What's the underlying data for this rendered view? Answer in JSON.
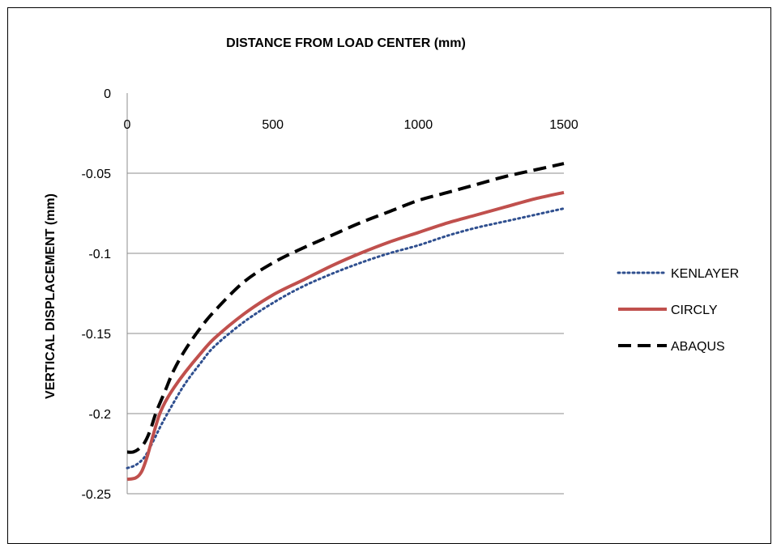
{
  "chart_data": {
    "type": "line",
    "xlabel": "DISTANCE FROM  LOAD CENTER (mm)",
    "ylabel": "VERTICAL  DISPLACEMENT  (mm)",
    "xlim": [
      0,
      1500
    ],
    "ylim": [
      -0.25,
      0
    ],
    "x_ticks": [
      "0",
      "500",
      "1000",
      "1500"
    ],
    "y_ticks": [
      "0",
      "-0.05",
      "-0.1",
      "-0.15",
      "-0.2",
      "-0.25"
    ],
    "x_axis_position": "top",
    "grid": "horizontal",
    "legend_position": "right",
    "series": [
      {
        "name": "KENLAYER",
        "color": "#2f4f8f",
        "style": "dotted",
        "x": [
          0,
          30,
          60,
          90,
          120,
          160,
          200,
          250,
          300,
          400,
          500,
          600,
          700,
          800,
          900,
          1000,
          1100,
          1200,
          1300,
          1400,
          1500
        ],
        "y": [
          -0.234,
          -0.232,
          -0.227,
          -0.217,
          -0.206,
          -0.193,
          -0.181,
          -0.169,
          -0.158,
          -0.143,
          -0.131,
          -0.121,
          -0.113,
          -0.106,
          -0.1,
          -0.095,
          -0.089,
          -0.084,
          -0.08,
          -0.076,
          -0.072
        ]
      },
      {
        "name": "CIRCLY",
        "color": "#c0504d",
        "style": "solid",
        "x": [
          0,
          30,
          50,
          70,
          90,
          110,
          130,
          160,
          200,
          250,
          300,
          400,
          500,
          600,
          700,
          800,
          900,
          1000,
          1100,
          1200,
          1300,
          1400,
          1500
        ],
        "y": [
          -0.241,
          -0.24,
          -0.236,
          -0.226,
          -0.213,
          -0.201,
          -0.193,
          -0.184,
          -0.174,
          -0.163,
          -0.153,
          -0.138,
          -0.126,
          -0.117,
          -0.108,
          -0.1,
          -0.093,
          -0.087,
          -0.081,
          -0.076,
          -0.071,
          -0.066,
          -0.062
        ]
      },
      {
        "name": "ABAQUS",
        "color": "#000000",
        "style": "dashed",
        "x": [
          0,
          20,
          40,
          60,
          80,
          100,
          130,
          160,
          200,
          250,
          300,
          400,
          500,
          600,
          700,
          800,
          900,
          1000,
          1100,
          1200,
          1300,
          1400,
          1500
        ],
        "y": [
          -0.224,
          -0.224,
          -0.222,
          -0.218,
          -0.21,
          -0.199,
          -0.186,
          -0.173,
          -0.16,
          -0.147,
          -0.136,
          -0.118,
          -0.106,
          -0.097,
          -0.089,
          -0.081,
          -0.074,
          -0.067,
          -0.062,
          -0.057,
          -0.052,
          -0.048,
          -0.044
        ]
      }
    ]
  }
}
